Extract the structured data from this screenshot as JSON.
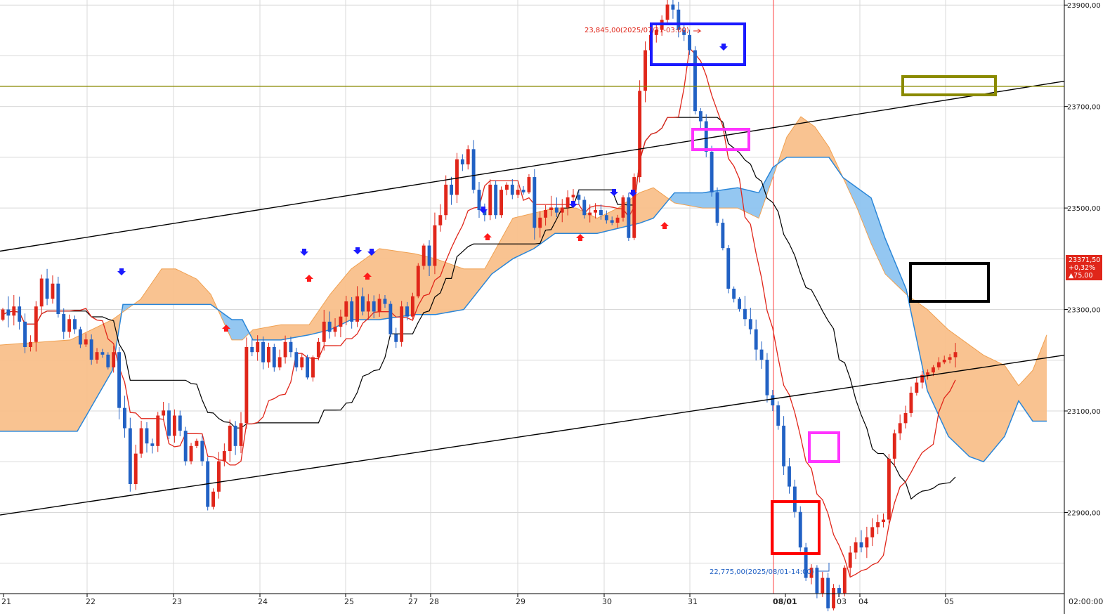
{
  "chart_data": {
    "type": "candlestick",
    "indicator": "ichimoku",
    "y_axis": {
      "min": 22740,
      "max": 23910,
      "ticks": [
        "22900,00",
        "23100,00",
        "23300,00",
        "23500,00",
        "23700,00",
        "23900,00"
      ],
      "tick_values": [
        22900,
        23100,
        23300,
        23500,
        23700,
        23900
      ]
    },
    "x_axis": {
      "labels": [
        "21",
        "22",
        "23",
        "24",
        "25",
        "27",
        "28",
        "29",
        "30",
        "31",
        "08/01",
        "03",
        "04",
        "05",
        "02:00:00"
      ]
    },
    "annotations": {
      "high": "23,845,00(2025/07/31-03:00)",
      "low": "22,775,00(2025/08/01-14:00)"
    },
    "price_badge": {
      "price": "23371,50",
      "change_pct": "+0,32%",
      "change_abs": "▲75,00"
    },
    "horizontal_level": 23740,
    "colors": {
      "up": "#e0261a",
      "down": "#2161c4",
      "tenkan": "#e0261a",
      "kijun": "#000000",
      "cloud_bull": "#f9c08b",
      "cloud_bear": "#8ec4f0",
      "level": "#8a8a00"
    },
    "candle_series": {
      "start_value": 23280,
      "moves": [
        20,
        -12,
        18,
        -30,
        -50,
        10,
        70,
        55,
        -40,
        30,
        -60,
        -35,
        25,
        -20,
        -30,
        10,
        -40,
        15,
        -5,
        -25,
        30,
        -110,
        -40,
        -110,
        60,
        50,
        -30,
        -5,
        60,
        10,
        -50,
        40,
        -30,
        -60,
        30,
        10,
        -40,
        -90,
        30,
        60,
        20,
        50,
        -40,
        45,
        150,
        -10,
        20,
        -40,
        30,
        -40,
        20,
        30,
        -20,
        -30,
        20,
        -40,
        40,
        30,
        40,
        -20,
        10,
        20,
        30,
        -40,
        50,
        -30,
        20,
        -20,
        25,
        -10,
        -60,
        -15,
        70,
        -20,
        40,
        60,
        40,
        -40,
        80,
        20,
        60,
        -20,
        70,
        -10,
        30,
        -80,
        -40,
        -10,
        60,
        -60,
        50,
        10,
        -20,
        10,
        -5,
        30,
        -100,
        20,
        15,
        5,
        -10,
        10,
        20,
        5,
        -10,
        -30,
        5,
        5,
        -10,
        -10,
        -5,
        10,
        40,
        -80,
        120,
        170,
        80,
        30,
        10,
        20,
        30,
        -10,
        -40,
        -10,
        -30,
        -120,
        -20,
        -60,
        -80,
        -60,
        -50,
        -80,
        -20,
        -20,
        -20,
        -20,
        -40,
        -20,
        -70,
        -20,
        -40,
        -80,
        -40,
        -50,
        -70,
        -60,
        20,
        -50,
        30,
        -60,
        40,
        -10,
        50,
        30,
        20,
        -10,
        20,
        20,
        10,
        5,
        120,
        50,
        20,
        20,
        40,
        20,
        15,
        5,
        10,
        10,
        5,
        5,
        10
      ]
    },
    "cloud": {
      "span_a": [
        [
          0,
          23230
        ],
        [
          100,
          23240
        ],
        [
          160,
          23280
        ],
        [
          200,
          23320
        ],
        [
          230,
          23380
        ],
        [
          250,
          23380
        ],
        [
          280,
          23360
        ],
        [
          300,
          23330
        ],
        [
          330,
          23240
        ],
        [
          345,
          23240
        ],
        [
          360,
          23260
        ],
        [
          400,
          23270
        ],
        [
          440,
          23270
        ],
        [
          470,
          23330
        ],
        [
          500,
          23380
        ],
        [
          540,
          23420
        ],
        [
          590,
          23410
        ],
        [
          620,
          23400
        ],
        [
          660,
          23380
        ],
        [
          690,
          23380
        ],
        [
          710,
          23430
        ],
        [
          730,
          23480
        ],
        [
          760,
          23490
        ],
        [
          790,
          23500
        ],
        [
          820,
          23500
        ],
        [
          850,
          23480
        ],
        [
          880,
          23500
        ],
        [
          910,
          23530
        ],
        [
          930,
          23540
        ],
        [
          960,
          23510
        ],
        [
          1000,
          23500
        ],
        [
          1050,
          23500
        ],
        [
          1080,
          23480
        ],
        [
          1100,
          23560
        ],
        [
          1120,
          23640
        ],
        [
          1140,
          23680
        ],
        [
          1160,
          23660
        ],
        [
          1180,
          23620
        ],
        [
          1200,
          23560
        ],
        [
          1220,
          23500
        ],
        [
          1240,
          23430
        ],
        [
          1260,
          23370
        ],
        [
          1290,
          23330
        ],
        [
          1320,
          23300
        ],
        [
          1350,
          23260
        ],
        [
          1400,
          23210
        ],
        [
          1430,
          23190
        ],
        [
          1450,
          23150
        ],
        [
          1470,
          23180
        ],
        [
          1490,
          23250
        ]
      ],
      "span_b": [
        [
          0,
          23060
        ],
        [
          100,
          23060
        ],
        [
          110,
          23060
        ],
        [
          160,
          23180
        ],
        [
          175,
          23310
        ],
        [
          220,
          23310
        ],
        [
          300,
          23310
        ],
        [
          330,
          23280
        ],
        [
          345,
          23280
        ],
        [
          360,
          23240
        ],
        [
          400,
          23240
        ],
        [
          440,
          23250
        ],
        [
          470,
          23260
        ],
        [
          500,
          23280
        ],
        [
          540,
          23280
        ],
        [
          590,
          23290
        ],
        [
          620,
          23290
        ],
        [
          660,
          23300
        ],
        [
          700,
          23370
        ],
        [
          730,
          23400
        ],
        [
          760,
          23420
        ],
        [
          790,
          23450
        ],
        [
          820,
          23450
        ],
        [
          850,
          23450
        ],
        [
          880,
          23460
        ],
        [
          910,
          23470
        ],
        [
          930,
          23480
        ],
        [
          960,
          23530
        ],
        [
          1000,
          23530
        ],
        [
          1050,
          23540
        ],
        [
          1080,
          23530
        ],
        [
          1100,
          23580
        ],
        [
          1120,
          23600
        ],
        [
          1140,
          23600
        ],
        [
          1160,
          23600
        ],
        [
          1180,
          23600
        ],
        [
          1200,
          23560
        ],
        [
          1220,
          23540
        ],
        [
          1240,
          23520
        ],
        [
          1260,
          23440
        ],
        [
          1290,
          23340
        ],
        [
          1320,
          23140
        ],
        [
          1350,
          23050
        ],
        [
          1380,
          23010
        ],
        [
          1400,
          23000
        ],
        [
          1430,
          23050
        ],
        [
          1450,
          23120
        ],
        [
          1470,
          23080
        ],
        [
          1490,
          23080
        ]
      ]
    },
    "trendlines": [
      {
        "from": [
          0,
          23415
        ],
        "to": [
          1515,
          23750
        ]
      },
      {
        "from": [
          0,
          22895
        ],
        "to": [
          1515,
          23210
        ]
      }
    ]
  }
}
